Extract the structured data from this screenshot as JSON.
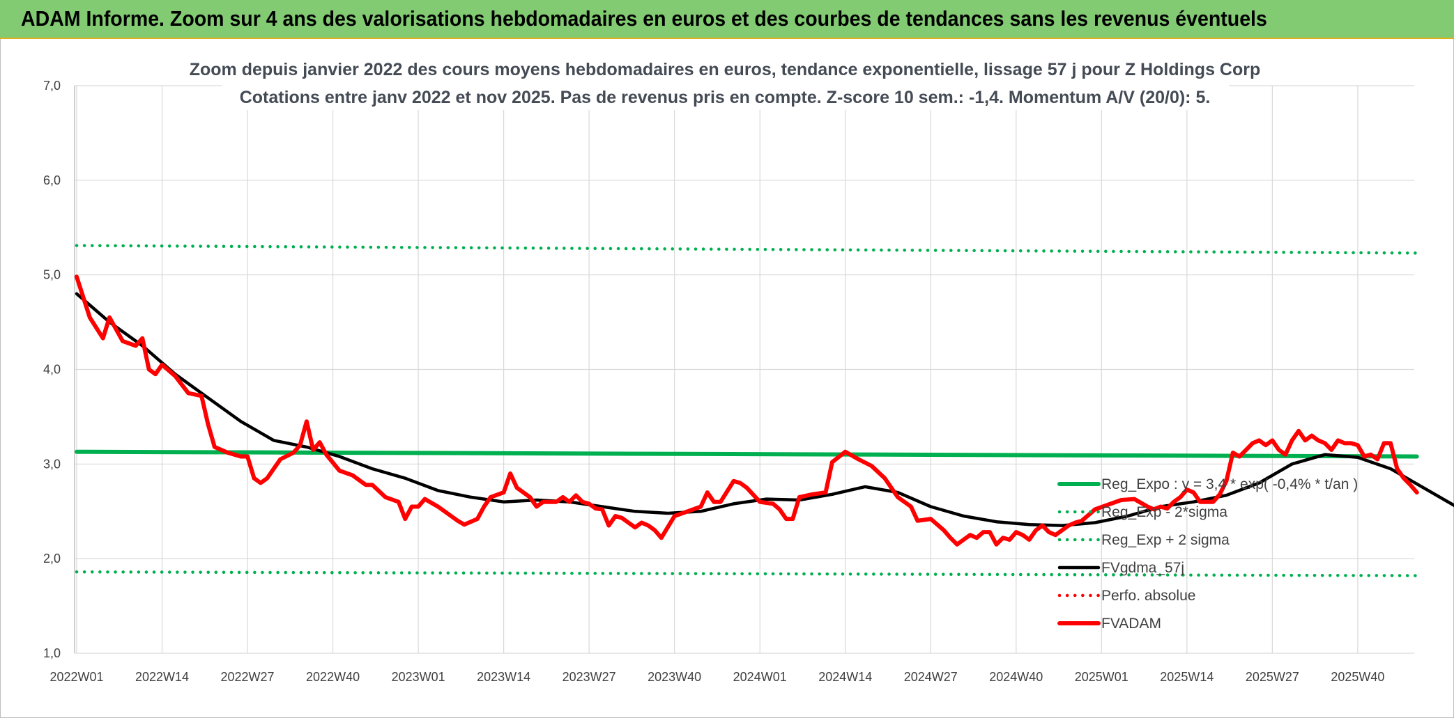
{
  "banner": {
    "title": "ADAM Informe. Zoom sur 4 ans des valorisations hebdomadaires en euros et des courbes de tendances sans les revenus éventuels"
  },
  "chart_data": {
    "type": "line",
    "title": "Zoom depuis janvier 2022 des cours moyens hebdomadaires en euros, tendance exponentielle, lissage 57 j pour Z Holdings Corp",
    "subtitle": "Cotations entre janv 2022 et nov 2025. Pas de revenus pris en compte. Z-score 10 sem.: -1,4. Momentum A/V (20/0): 5.",
    "x_ticks": [
      "2022W01",
      "2022W14",
      "2022W27",
      "2022W40",
      "2023W01",
      "2023W14",
      "2023W27",
      "2023W40",
      "2024W01",
      "2024W14",
      "2024W27",
      "2024W40",
      "2025W01",
      "2025W14",
      "2025W27",
      "2025W40"
    ],
    "y_ticks": [
      "7,0",
      "6,0",
      "5,0",
      "4,0",
      "3,0",
      "2,0",
      "1,0"
    ],
    "ylim": [
      1.0,
      7.0
    ],
    "grid": true,
    "legend_placement": "right",
    "x_index_per_tick": 13,
    "n_points": 205,
    "series": [
      {
        "name": "Reg_Expo : y = 3,4 * exp( -0,4% * t/an )",
        "style": "solid-thick",
        "color": "#00b050",
        "anchors": [
          [
            0,
            3.13
          ],
          [
            204,
            3.08
          ]
        ]
      },
      {
        "name": "Reg_Exp - 2*sigma",
        "style": "dotted",
        "color": "#00b050",
        "anchors": [
          [
            0,
            1.86
          ],
          [
            204,
            1.82
          ]
        ]
      },
      {
        "name": "Reg_Exp + 2 sigma",
        "style": "dotted",
        "color": "#00b050",
        "anchors": [
          [
            0,
            5.31
          ],
          [
            204,
            5.23
          ]
        ]
      },
      {
        "name": "FVgdma_57j",
        "style": "solid",
        "color": "#000000",
        "anchors": [
          [
            0,
            4.8
          ],
          [
            5,
            4.5
          ],
          [
            10,
            4.25
          ],
          [
            15,
            3.95
          ],
          [
            20,
            3.7
          ],
          [
            25,
            3.45
          ],
          [
            30,
            3.25
          ],
          [
            35,
            3.18
          ],
          [
            40,
            3.08
          ],
          [
            45,
            2.95
          ],
          [
            50,
            2.85
          ],
          [
            55,
            2.72
          ],
          [
            60,
            2.65
          ],
          [
            65,
            2.6
          ],
          [
            70,
            2.62
          ],
          [
            75,
            2.6
          ],
          [
            80,
            2.55
          ],
          [
            85,
            2.5
          ],
          [
            90,
            2.48
          ],
          [
            95,
            2.5
          ],
          [
            100,
            2.58
          ],
          [
            105,
            2.63
          ],
          [
            110,
            2.62
          ],
          [
            115,
            2.68
          ],
          [
            120,
            2.76
          ],
          [
            125,
            2.7
          ],
          [
            130,
            2.55
          ],
          [
            135,
            2.45
          ],
          [
            140,
            2.39
          ],
          [
            145,
            2.36
          ],
          [
            150,
            2.35
          ],
          [
            155,
            2.38
          ],
          [
            160,
            2.45
          ],
          [
            165,
            2.55
          ],
          [
            170,
            2.6
          ],
          [
            175,
            2.67
          ],
          [
            180,
            2.8
          ],
          [
            185,
            3.0
          ],
          [
            190,
            3.1
          ],
          [
            195,
            3.07
          ],
          [
            200,
            2.95
          ],
          [
            205,
            2.75
          ],
          [
            210,
            2.55
          ],
          [
            215,
            2.48
          ]
        ]
      },
      {
        "name": "Perfo. absolue",
        "style": "dotted",
        "color": "#ff0000",
        "anchors": []
      },
      {
        "name": "FVADAM",
        "style": "solid-thick",
        "color": "#ff0000",
        "anchors": [
          [
            0,
            4.98
          ],
          [
            2,
            4.55
          ],
          [
            4,
            4.33
          ],
          [
            5,
            4.55
          ],
          [
            7,
            4.3
          ],
          [
            9,
            4.25
          ],
          [
            10,
            4.33
          ],
          [
            11,
            4.0
          ],
          [
            12,
            3.95
          ],
          [
            13,
            4.05
          ],
          [
            15,
            3.93
          ],
          [
            17,
            3.75
          ],
          [
            19,
            3.72
          ],
          [
            20,
            3.42
          ],
          [
            21,
            3.18
          ],
          [
            23,
            3.12
          ],
          [
            25,
            3.08
          ],
          [
            26,
            3.08
          ],
          [
            27,
            2.85
          ],
          [
            28,
            2.8
          ],
          [
            29,
            2.85
          ],
          [
            31,
            3.05
          ],
          [
            33,
            3.12
          ],
          [
            34,
            3.2
          ],
          [
            35,
            3.45
          ],
          [
            36,
            3.15
          ],
          [
            37,
            3.23
          ],
          [
            38,
            3.1
          ],
          [
            40,
            2.93
          ],
          [
            42,
            2.88
          ],
          [
            44,
            2.78
          ],
          [
            45,
            2.78
          ],
          [
            47,
            2.65
          ],
          [
            49,
            2.6
          ],
          [
            50,
            2.42
          ],
          [
            51,
            2.55
          ],
          [
            52,
            2.55
          ],
          [
            53,
            2.63
          ],
          [
            55,
            2.55
          ],
          [
            57,
            2.45
          ],
          [
            58,
            2.4
          ],
          [
            59,
            2.36
          ],
          [
            61,
            2.42
          ],
          [
            62,
            2.55
          ],
          [
            63,
            2.65
          ],
          [
            65,
            2.7
          ],
          [
            66,
            2.9
          ],
          [
            67,
            2.75
          ],
          [
            69,
            2.65
          ],
          [
            70,
            2.55
          ],
          [
            71,
            2.6
          ],
          [
            73,
            2.6
          ],
          [
            74,
            2.65
          ],
          [
            75,
            2.6
          ],
          [
            76,
            2.67
          ],
          [
            77,
            2.6
          ],
          [
            78,
            2.58
          ],
          [
            79,
            2.53
          ],
          [
            80,
            2.52
          ],
          [
            81,
            2.35
          ],
          [
            82,
            2.45
          ],
          [
            83,
            2.43
          ],
          [
            85,
            2.33
          ],
          [
            86,
            2.38
          ],
          [
            87,
            2.35
          ],
          [
            88,
            2.3
          ],
          [
            89,
            2.22
          ],
          [
            91,
            2.45
          ],
          [
            93,
            2.5
          ],
          [
            95,
            2.55
          ],
          [
            96,
            2.7
          ],
          [
            97,
            2.6
          ],
          [
            98,
            2.6
          ],
          [
            100,
            2.82
          ],
          [
            101,
            2.8
          ],
          [
            102,
            2.75
          ],
          [
            104,
            2.6
          ],
          [
            106,
            2.58
          ],
          [
            107,
            2.52
          ],
          [
            108,
            2.42
          ],
          [
            109,
            2.42
          ],
          [
            110,
            2.65
          ],
          [
            112,
            2.68
          ],
          [
            114,
            2.7
          ],
          [
            115,
            3.02
          ],
          [
            117,
            3.13
          ],
          [
            119,
            3.05
          ],
          [
            121,
            2.98
          ],
          [
            123,
            2.85
          ],
          [
            125,
            2.65
          ],
          [
            127,
            2.55
          ],
          [
            128,
            2.4
          ],
          [
            130,
            2.42
          ],
          [
            132,
            2.3
          ],
          [
            133,
            2.22
          ],
          [
            134,
            2.15
          ],
          [
            135,
            2.2
          ],
          [
            136,
            2.25
          ],
          [
            137,
            2.22
          ],
          [
            138,
            2.28
          ],
          [
            139,
            2.28
          ],
          [
            140,
            2.15
          ],
          [
            141,
            2.22
          ],
          [
            142,
            2.2
          ],
          [
            143,
            2.28
          ],
          [
            144,
            2.25
          ],
          [
            145,
            2.2
          ],
          [
            146,
            2.3
          ],
          [
            147,
            2.35
          ],
          [
            148,
            2.28
          ],
          [
            149,
            2.25
          ],
          [
            151,
            2.35
          ],
          [
            152,
            2.38
          ],
          [
            153,
            2.4
          ],
          [
            155,
            2.52
          ],
          [
            157,
            2.57
          ],
          [
            159,
            2.62
          ],
          [
            161,
            2.63
          ],
          [
            163,
            2.55
          ],
          [
            164,
            2.52
          ],
          [
            165,
            2.55
          ],
          [
            166,
            2.53
          ],
          [
            167,
            2.6
          ],
          [
            168,
            2.65
          ],
          [
            169,
            2.73
          ],
          [
            170,
            2.7
          ],
          [
            171,
            2.6
          ],
          [
            173,
            2.6
          ],
          [
            174,
            2.68
          ],
          [
            175,
            2.82
          ],
          [
            176,
            3.12
          ],
          [
            177,
            3.08
          ],
          [
            178,
            3.15
          ],
          [
            179,
            3.22
          ],
          [
            180,
            3.25
          ],
          [
            181,
            3.2
          ],
          [
            182,
            3.25
          ],
          [
            183,
            3.15
          ],
          [
            184,
            3.1
          ],
          [
            185,
            3.25
          ],
          [
            186,
            3.35
          ],
          [
            187,
            3.25
          ],
          [
            188,
            3.3
          ],
          [
            189,
            3.25
          ],
          [
            190,
            3.22
          ],
          [
            191,
            3.15
          ],
          [
            192,
            3.25
          ],
          [
            193,
            3.22
          ],
          [
            194,
            3.22
          ],
          [
            195,
            3.2
          ],
          [
            196,
            3.08
          ],
          [
            197,
            3.1
          ],
          [
            198,
            3.05
          ],
          [
            199,
            3.22
          ],
          [
            200,
            3.22
          ],
          [
            201,
            2.95
          ],
          [
            202,
            2.85
          ],
          [
            203,
            2.78
          ],
          [
            204,
            2.7
          ]
        ]
      }
    ]
  }
}
